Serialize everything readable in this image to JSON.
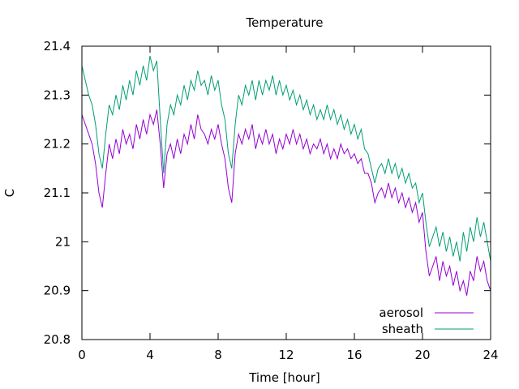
{
  "chart_data": {
    "type": "line",
    "title": "Temperature",
    "xlabel": "Time [hour]",
    "ylabel": "C",
    "xlim": [
      0,
      24
    ],
    "ylim": [
      20.8,
      21.4
    ],
    "xticks": [
      0,
      4,
      8,
      12,
      16,
      20,
      24
    ],
    "xtick_labels": [
      "0",
      "4",
      "8",
      "12",
      "16",
      "20",
      "24"
    ],
    "yticks": [
      20.8,
      20.9,
      21.0,
      21.1,
      21.2,
      21.3,
      21.4
    ],
    "ytick_labels": [
      "20.8",
      "20.9",
      "21",
      "21.1",
      "21.2",
      "21.3",
      "21.4"
    ],
    "grid": false,
    "legend_position": "bottom-right",
    "series": [
      {
        "name": "aerosol",
        "color": "#9400d3",
        "x": [
          0.0,
          0.2,
          0.4,
          0.6,
          0.8,
          1.0,
          1.2,
          1.4,
          1.6,
          1.8,
          2.0,
          2.2,
          2.4,
          2.6,
          2.8,
          3.0,
          3.2,
          3.4,
          3.6,
          3.8,
          4.0,
          4.2,
          4.4,
          4.6,
          4.8,
          5.0,
          5.2,
          5.4,
          5.6,
          5.8,
          6.0,
          6.2,
          6.4,
          6.6,
          6.8,
          7.0,
          7.2,
          7.4,
          7.6,
          7.8,
          8.0,
          8.2,
          8.4,
          8.6,
          8.8,
          9.0,
          9.2,
          9.4,
          9.6,
          9.8,
          10.0,
          10.2,
          10.4,
          10.6,
          10.8,
          11.0,
          11.2,
          11.4,
          11.6,
          11.8,
          12.0,
          12.2,
          12.4,
          12.6,
          12.8,
          13.0,
          13.2,
          13.4,
          13.6,
          13.8,
          14.0,
          14.2,
          14.4,
          14.6,
          14.8,
          15.0,
          15.2,
          15.4,
          15.6,
          15.8,
          16.0,
          16.2,
          16.4,
          16.6,
          16.8,
          17.0,
          17.2,
          17.4,
          17.6,
          17.8,
          18.0,
          18.2,
          18.4,
          18.6,
          18.8,
          19.0,
          19.2,
          19.4,
          19.6,
          19.8,
          20.0,
          20.2,
          20.4,
          20.6,
          20.8,
          21.0,
          21.2,
          21.4,
          21.6,
          21.8,
          22.0,
          22.2,
          22.4,
          22.6,
          22.8,
          23.0,
          23.2,
          23.4,
          23.6,
          23.8,
          24.0
        ],
        "y": [
          21.26,
          21.24,
          21.22,
          21.2,
          21.16,
          21.1,
          21.07,
          21.14,
          21.2,
          21.17,
          21.21,
          21.18,
          21.23,
          21.2,
          21.22,
          21.19,
          21.24,
          21.21,
          21.25,
          21.22,
          21.26,
          21.24,
          21.27,
          21.2,
          21.11,
          21.18,
          21.2,
          21.17,
          21.21,
          21.18,
          21.22,
          21.2,
          21.24,
          21.21,
          21.26,
          21.23,
          21.22,
          21.2,
          21.23,
          21.21,
          21.24,
          21.2,
          21.17,
          21.11,
          21.08,
          21.18,
          21.22,
          21.2,
          21.23,
          21.21,
          21.24,
          21.19,
          21.22,
          21.2,
          21.23,
          21.2,
          21.22,
          21.18,
          21.21,
          21.19,
          21.22,
          21.2,
          21.23,
          21.2,
          21.22,
          21.19,
          21.21,
          21.18,
          21.2,
          21.19,
          21.21,
          21.18,
          21.2,
          21.17,
          21.19,
          21.17,
          21.2,
          21.18,
          21.19,
          21.17,
          21.18,
          21.16,
          21.17,
          21.14,
          21.14,
          21.12,
          21.08,
          21.1,
          21.11,
          21.09,
          21.12,
          21.09,
          21.11,
          21.08,
          21.1,
          21.07,
          21.09,
          21.06,
          21.08,
          21.04,
          21.06,
          20.98,
          20.93,
          20.95,
          20.97,
          20.92,
          20.96,
          20.93,
          20.95,
          20.91,
          20.94,
          20.9,
          20.92,
          20.89,
          20.94,
          20.92,
          20.97,
          20.94,
          20.96,
          20.92,
          20.9
        ]
      },
      {
        "name": "sheath",
        "color": "#009e73",
        "x": [
          0.0,
          0.2,
          0.4,
          0.6,
          0.8,
          1.0,
          1.2,
          1.4,
          1.6,
          1.8,
          2.0,
          2.2,
          2.4,
          2.6,
          2.8,
          3.0,
          3.2,
          3.4,
          3.6,
          3.8,
          4.0,
          4.2,
          4.4,
          4.6,
          4.8,
          5.0,
          5.2,
          5.4,
          5.6,
          5.8,
          6.0,
          6.2,
          6.4,
          6.6,
          6.8,
          7.0,
          7.2,
          7.4,
          7.6,
          7.8,
          8.0,
          8.2,
          8.4,
          8.6,
          8.8,
          9.0,
          9.2,
          9.4,
          9.6,
          9.8,
          10.0,
          10.2,
          10.4,
          10.6,
          10.8,
          11.0,
          11.2,
          11.4,
          11.6,
          11.8,
          12.0,
          12.2,
          12.4,
          12.6,
          12.8,
          13.0,
          13.2,
          13.4,
          13.6,
          13.8,
          14.0,
          14.2,
          14.4,
          14.6,
          14.8,
          15.0,
          15.2,
          15.4,
          15.6,
          15.8,
          16.0,
          16.2,
          16.4,
          16.6,
          16.8,
          17.0,
          17.2,
          17.4,
          17.6,
          17.8,
          18.0,
          18.2,
          18.4,
          18.6,
          18.8,
          19.0,
          19.2,
          19.4,
          19.6,
          19.8,
          20.0,
          20.2,
          20.4,
          20.6,
          20.8,
          21.0,
          21.2,
          21.4,
          21.6,
          21.8,
          22.0,
          22.2,
          22.4,
          22.6,
          22.8,
          23.0,
          23.2,
          23.4,
          23.6,
          23.8,
          24.0
        ],
        "y": [
          21.36,
          21.33,
          21.3,
          21.28,
          21.24,
          21.18,
          21.15,
          21.22,
          21.28,
          21.26,
          21.3,
          21.27,
          21.32,
          21.29,
          21.33,
          21.3,
          21.35,
          21.32,
          21.36,
          21.33,
          21.38,
          21.35,
          21.37,
          21.25,
          21.14,
          21.24,
          21.28,
          21.26,
          21.3,
          21.28,
          21.32,
          21.29,
          21.33,
          21.31,
          21.35,
          21.32,
          21.33,
          21.3,
          21.34,
          21.31,
          21.33,
          21.28,
          21.25,
          21.18,
          21.15,
          21.24,
          21.3,
          21.28,
          21.32,
          21.3,
          21.33,
          21.29,
          21.33,
          21.3,
          21.33,
          21.31,
          21.34,
          21.3,
          21.33,
          21.3,
          21.32,
          21.29,
          21.31,
          21.28,
          21.3,
          21.27,
          21.29,
          21.26,
          21.28,
          21.25,
          21.27,
          21.25,
          21.28,
          21.25,
          21.27,
          21.24,
          21.26,
          21.23,
          21.25,
          21.22,
          21.24,
          21.21,
          21.23,
          21.19,
          21.18,
          21.15,
          21.12,
          21.15,
          21.16,
          21.14,
          21.17,
          21.14,
          21.16,
          21.13,
          21.15,
          21.12,
          21.14,
          21.11,
          21.12,
          21.08,
          21.1,
          21.04,
          20.99,
          21.01,
          21.03,
          20.99,
          21.02,
          20.98,
          21.01,
          20.97,
          21.0,
          20.96,
          21.02,
          20.98,
          21.03,
          21.0,
          21.05,
          21.01,
          21.04,
          21.0,
          20.96
        ]
      }
    ]
  }
}
